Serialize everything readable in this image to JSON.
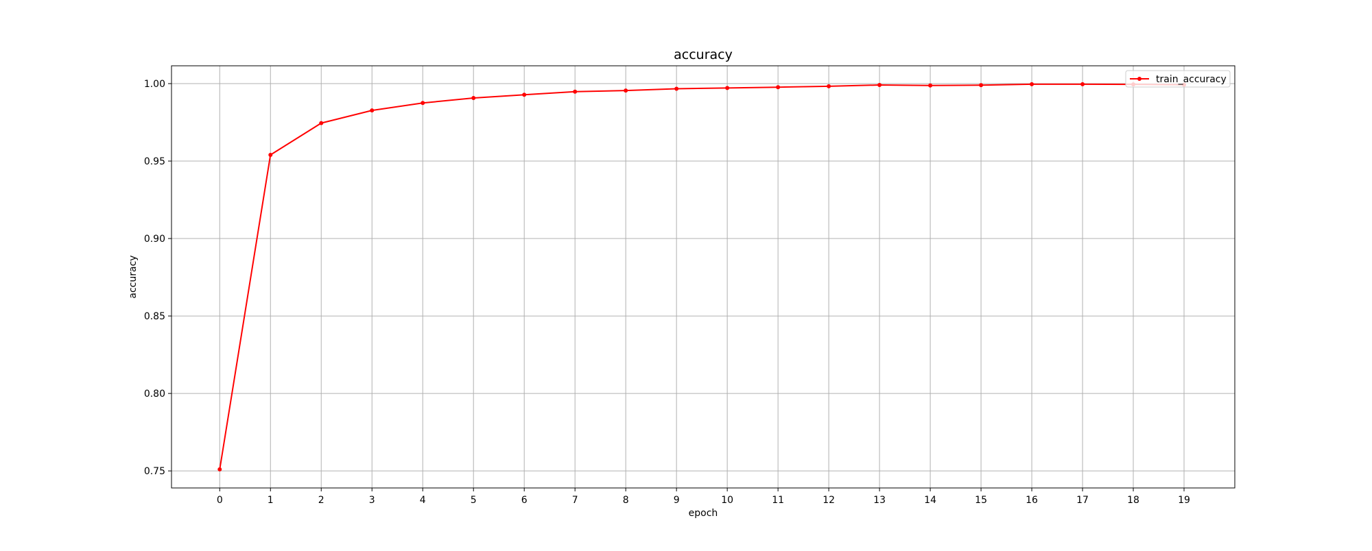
{
  "chart_data": {
    "type": "line",
    "title": "accuracy",
    "xlabel": "epoch",
    "ylabel": "accuracy",
    "x": [
      0,
      1,
      2,
      3,
      4,
      5,
      6,
      7,
      8,
      9,
      10,
      11,
      12,
      13,
      14,
      15,
      16,
      17,
      18,
      19
    ],
    "x_ticks": [
      "0",
      "1",
      "2",
      "3",
      "4",
      "5",
      "6",
      "7",
      "8",
      "9",
      "10",
      "11",
      "12",
      "13",
      "14",
      "15",
      "16",
      "17",
      "18",
      "19"
    ],
    "y_ticks": [
      "0.75",
      "0.80",
      "0.85",
      "0.90",
      "0.95",
      "1.00"
    ],
    "xlim": [
      -0.95,
      20.0
    ],
    "ylim": [
      0.739,
      1.0115
    ],
    "grid": true,
    "legend_position": "upper right",
    "series": [
      {
        "name": "train_accuracy",
        "color": "#ff0000",
        "marker": "dot",
        "values": [
          0.751,
          0.954,
          0.9745,
          0.9827,
          0.9875,
          0.9907,
          0.9928,
          0.9948,
          0.9955,
          0.9967,
          0.9972,
          0.9977,
          0.9983,
          0.9991,
          0.9988,
          0.999,
          0.9996,
          0.9996,
          0.9995,
          0.9993
        ]
      }
    ]
  }
}
